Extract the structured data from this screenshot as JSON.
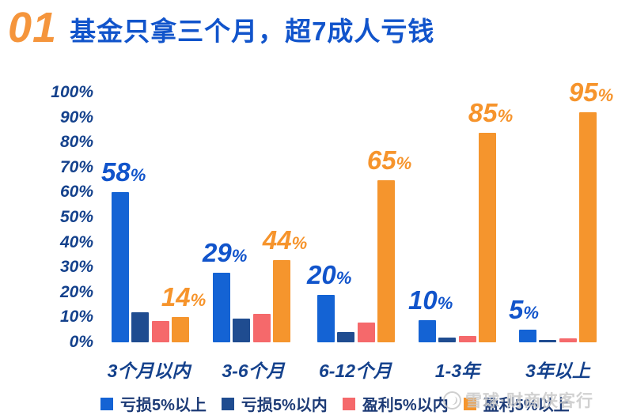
{
  "title": {
    "number": "01",
    "text": "基金只拿三个月，超7成人亏钱"
  },
  "watermark": {
    "logo": "snowball-logo",
    "text": "雪球·财商侠客行"
  },
  "colors": {
    "blue": "#1463d4",
    "navy": "#1f4c90",
    "salmon": "#f5696b",
    "orange": "#f5952d",
    "label_blue": "#1154cb",
    "label_orange": "#f6942c",
    "axis_text": "#14418c",
    "legend_text": "#1c3a75",
    "title_number_orange": "#f5953c",
    "title_text_blue": "#1154cb",
    "watermark_gray": "#c9c9c9"
  },
  "chart_data": {
    "type": "bar",
    "title": "基金只拿三个月，超7成人亏钱",
    "xlabel": "",
    "ylabel": "",
    "ylim": [
      0,
      100
    ],
    "grid": false,
    "legend_position": "bottom",
    "categories": [
      "3个月以内",
      "3-6个月",
      "6-12个月",
      "1-3年",
      "3年以上"
    ],
    "y_ticks": [
      "100%",
      "90%",
      "80%",
      "70%",
      "60%",
      "50%",
      "40%",
      "30%",
      "20%",
      "10%",
      "0%"
    ],
    "series": [
      {
        "name": "亏损5%以上",
        "color_key": "blue",
        "label_color_key": "label_blue",
        "values": [
          58,
          29,
          20,
          10,
          5
        ],
        "value_labels": [
          "58%",
          "29%",
          "20%",
          "10%",
          "5%"
        ],
        "rendered_heights": [
          60,
          28,
          19,
          9,
          5
        ]
      },
      {
        "name": "亏损5%以内",
        "color_key": "navy",
        "label_color_key": "label_blue",
        "values": [
          12,
          10,
          4,
          2,
          1
        ],
        "value_labels": [],
        "rendered_heights": [
          12,
          9.5,
          4,
          2,
          1
        ]
      },
      {
        "name": "盈利5%以内",
        "color_key": "salmon",
        "label_color_key": "label_orange",
        "values": [
          9,
          12,
          8,
          3,
          2
        ],
        "value_labels": [],
        "rendered_heights": [
          8.5,
          11.5,
          8,
          2.5,
          1.5
        ]
      },
      {
        "name": "盈利5%以上",
        "color_key": "orange",
        "label_color_key": "label_orange",
        "values": [
          14,
          44,
          65,
          85,
          95
        ],
        "value_labels": [
          "14%",
          "44%",
          "65%",
          "85%",
          "95%"
        ],
        "rendered_heights": [
          10,
          33,
          65,
          84,
          92
        ]
      }
    ]
  },
  "layout_note": "value labels shown only for first and last series"
}
